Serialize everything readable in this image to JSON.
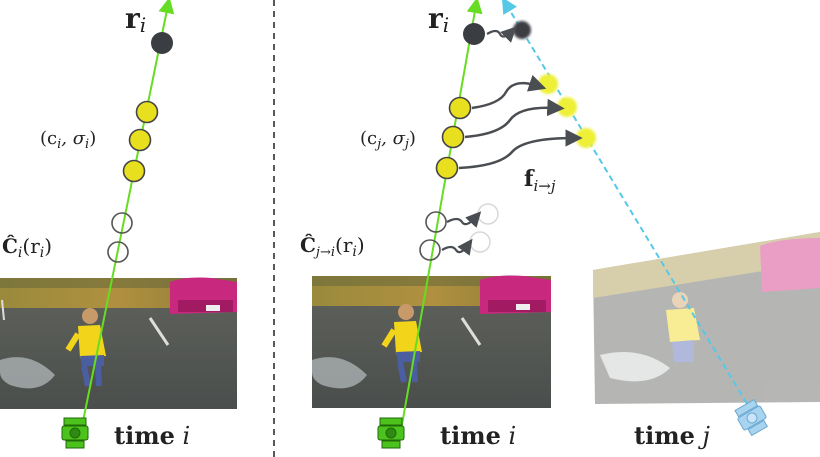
{
  "left_panel": {
    "ray_label_main": "r",
    "ray_label_sub": "i",
    "sample_label": "(c",
    "sample_label_sub": "i",
    "sample_label_rest": ", σ",
    "sample_label_sub2": "i",
    "sample_label_close": ")",
    "render_label_main": "Ĉ",
    "render_label_sub": "i",
    "render_label_arg": "(r",
    "render_label_arg_sub": "i",
    "render_label_close": ")",
    "time_word": "time",
    "time_var": "i"
  },
  "right_panel": {
    "ray_label_main": "r",
    "ray_label_sub": "i",
    "sample_label": "(c",
    "sample_label_sub": "j",
    "sample_label_rest": ", σ",
    "sample_label_sub2": "j",
    "sample_label_close": ")",
    "render_label_main": "Ĉ",
    "render_label_sub": "j→i",
    "render_label_arg": "(r",
    "render_label_arg_sub": "i",
    "render_label_close": ")",
    "flow_label_main": "f",
    "flow_label_sub": "i→j",
    "time_i_word": "time",
    "time_i_var": "i",
    "time_j_word": "time",
    "time_j_var": "j"
  },
  "colors": {
    "ray_green": "#66dd22",
    "sample_yellow": "#e8e01e",
    "sample_yellow_light": "#eef038",
    "dark_point": "#3a3d42",
    "warped_ray": "#55c8e8",
    "camera_green": "#4cc31c",
    "camera_blue": "#a8d4f0",
    "flow_arrow": "#4a4d52"
  },
  "icons": [
    "camera-icon",
    "camera-icon-blue"
  ]
}
